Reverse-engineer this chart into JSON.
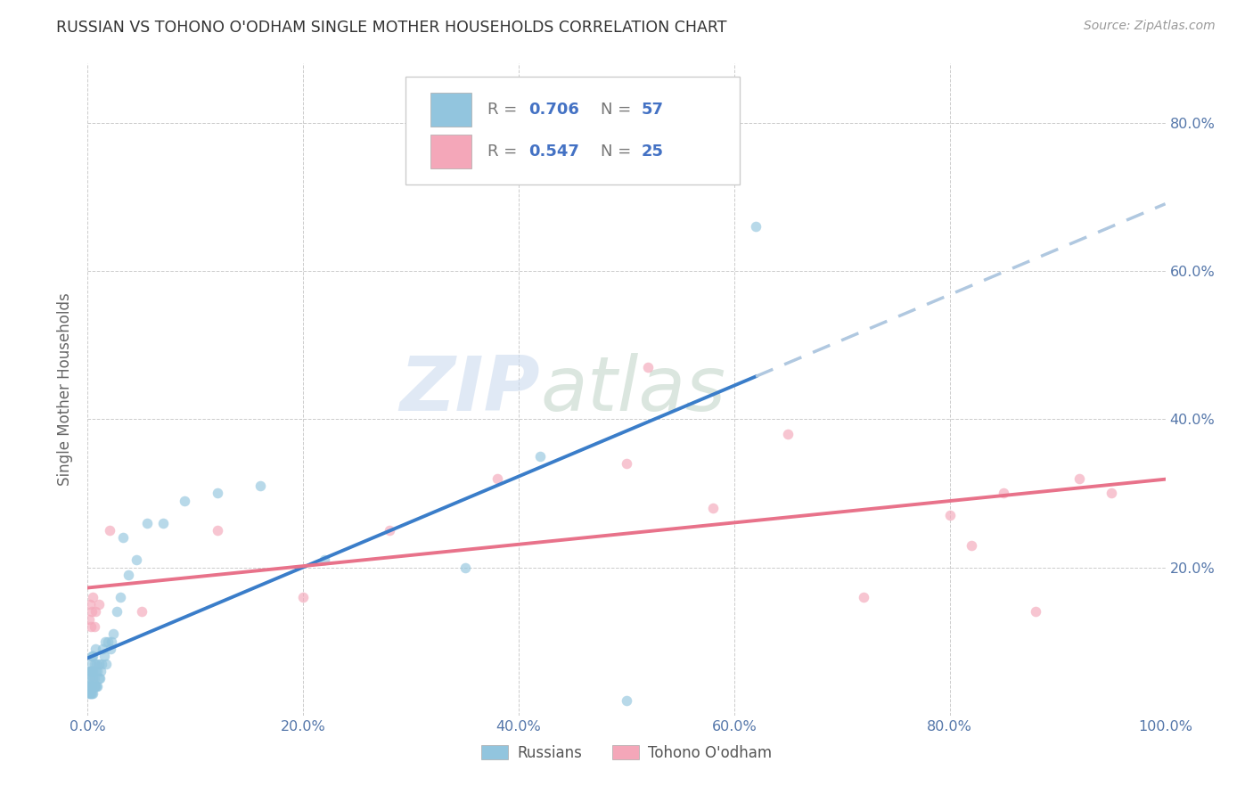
{
  "title": "RUSSIAN VS TOHONO O'ODHAM SINGLE MOTHER HOUSEHOLDS CORRELATION CHART",
  "source": "Source: ZipAtlas.com",
  "ylabel": "Single Mother Households",
  "background_color": "#ffffff",
  "watermark_zip": "ZIP",
  "watermark_atlas": "atlas",
  "legend_r1": "0.706",
  "legend_n1": "57",
  "legend_r2": "0.547",
  "legend_n2": "25",
  "label1": "Russians",
  "label2": "Tohono O'odham",
  "color1": "#92c5de",
  "color2": "#f4a7b9",
  "trendline1_color": "#3a7dc9",
  "trendline2_color": "#e8728a",
  "trendline1_dashed_color": "#b0c8e0",
  "xlim": [
    0,
    1.0
  ],
  "ylim": [
    0,
    0.88
  ],
  "xticks": [
    0.0,
    0.2,
    0.4,
    0.6,
    0.8,
    1.0
  ],
  "yticks": [
    0.0,
    0.2,
    0.4,
    0.6,
    0.8
  ],
  "xtick_labels": [
    "0.0%",
    "20.0%",
    "40.0%",
    "60.0%",
    "80.0%",
    "100.0%"
  ],
  "ytick_labels_right": [
    "",
    "20.0%",
    "40.0%",
    "60.0%",
    "80.0%"
  ],
  "russians_x": [
    0.0005,
    0.001,
    0.001,
    0.0015,
    0.002,
    0.002,
    0.002,
    0.003,
    0.003,
    0.003,
    0.003,
    0.004,
    0.004,
    0.004,
    0.004,
    0.005,
    0.005,
    0.005,
    0.005,
    0.006,
    0.006,
    0.006,
    0.007,
    0.007,
    0.007,
    0.008,
    0.008,
    0.009,
    0.009,
    0.01,
    0.01,
    0.011,
    0.012,
    0.013,
    0.014,
    0.015,
    0.016,
    0.017,
    0.019,
    0.021,
    0.022,
    0.024,
    0.027,
    0.03,
    0.033,
    0.038,
    0.045,
    0.055,
    0.07,
    0.09,
    0.12,
    0.16,
    0.22,
    0.35,
    0.42,
    0.5,
    0.62
  ],
  "russians_y": [
    0.04,
    0.03,
    0.05,
    0.04,
    0.03,
    0.05,
    0.06,
    0.03,
    0.04,
    0.06,
    0.07,
    0.03,
    0.04,
    0.06,
    0.08,
    0.03,
    0.05,
    0.06,
    0.08,
    0.04,
    0.05,
    0.07,
    0.04,
    0.06,
    0.09,
    0.04,
    0.07,
    0.04,
    0.06,
    0.05,
    0.07,
    0.05,
    0.06,
    0.07,
    0.09,
    0.08,
    0.1,
    0.07,
    0.1,
    0.09,
    0.1,
    0.11,
    0.14,
    0.16,
    0.24,
    0.19,
    0.21,
    0.26,
    0.26,
    0.29,
    0.3,
    0.31,
    0.21,
    0.2,
    0.35,
    0.02,
    0.66
  ],
  "odham_x": [
    0.001,
    0.002,
    0.003,
    0.004,
    0.005,
    0.006,
    0.007,
    0.01,
    0.02,
    0.05,
    0.12,
    0.2,
    0.28,
    0.38,
    0.5,
    0.52,
    0.58,
    0.65,
    0.72,
    0.8,
    0.82,
    0.85,
    0.88,
    0.92,
    0.95
  ],
  "odham_y": [
    0.13,
    0.15,
    0.12,
    0.14,
    0.16,
    0.12,
    0.14,
    0.15,
    0.25,
    0.14,
    0.25,
    0.16,
    0.25,
    0.32,
    0.34,
    0.47,
    0.28,
    0.38,
    0.16,
    0.27,
    0.23,
    0.3,
    0.14,
    0.32,
    0.3
  ],
  "trendline1_x_solid_end": 0.62,
  "trendline1_x_start": 0.0,
  "trendline1_x_end": 1.0
}
